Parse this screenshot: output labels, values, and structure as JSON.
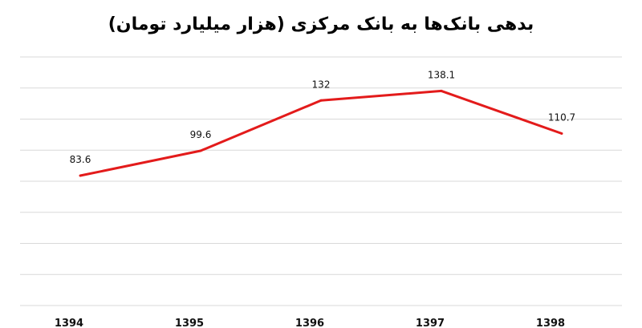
{
  "chart_data": {
    "type": "line",
    "title": "بدهی بانک‌ها به بانک مرکزی (هزار میلیارد تومان)",
    "xlabel": "",
    "ylabel": "",
    "categories": [
      "1394",
      "1395",
      "1396",
      "1397",
      "1398"
    ],
    "series": [
      {
        "values": [
          83.6,
          99.6,
          132,
          138.1,
          110.7
        ],
        "labels": [
          "83.6",
          "99.6",
          "132",
          "138.1",
          "110.7"
        ],
        "color": "#e31b1b"
      }
    ],
    "ylim": [
      0,
      160
    ],
    "grid": true,
    "legend": "none"
  }
}
